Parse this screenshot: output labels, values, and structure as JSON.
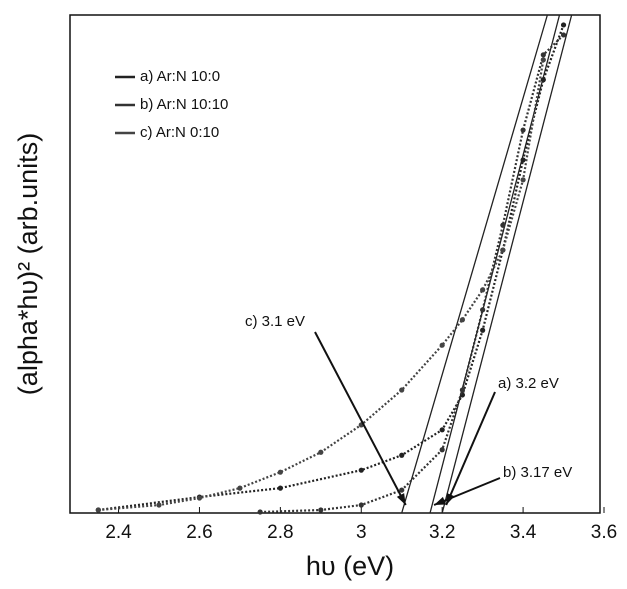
{
  "chart_data": {
    "type": "line",
    "x_label": "hυ (eV)",
    "y_label": "(alpha*hυ)² (arb.units)",
    "xlim": [
      2.28,
      3.6
    ],
    "ylim": [
      0,
      100
    ],
    "xticks": [
      2.4,
      2.6,
      2.8,
      3,
      3.2,
      3.4,
      3.6
    ],
    "series": [
      {
        "name": "a) Ar:N 10:0",
        "color": "#222222",
        "x": [
          2.35,
          2.6,
          2.8,
          3.0,
          3.1,
          3.2,
          3.25,
          3.3,
          3.35,
          3.4,
          3.45,
          3.5
        ],
        "values": [
          0.6,
          3.2,
          5.0,
          8.6,
          11.6,
          16.7,
          23.7,
          36.7,
          52.8,
          70.9,
          87.0,
          98.0
        ]
      },
      {
        "name": "b) Ar:N 10:10",
        "color": "#333333",
        "x": [
          2.75,
          2.9,
          3.0,
          3.1,
          3.2,
          3.25,
          3.3,
          3.35,
          3.4,
          3.45,
          3.5
        ],
        "values": [
          0.2,
          0.6,
          1.6,
          4.6,
          12.7,
          24.7,
          40.8,
          57.8,
          76.9,
          92.0,
          96.0
        ]
      },
      {
        "name": "c) Ar:N 0:10",
        "color": "#444444",
        "x": [
          2.35,
          2.5,
          2.6,
          2.7,
          2.8,
          2.9,
          3.0,
          3.1,
          3.2,
          3.25,
          3.3,
          3.35,
          3.4,
          3.45
        ],
        "values": [
          0.6,
          1.6,
          3.0,
          5.0,
          8.2,
          12.2,
          17.7,
          24.7,
          33.7,
          38.8,
          44.8,
          52.8,
          66.9,
          91.0
        ]
      }
    ],
    "tangents": [
      {
        "x": [
          3.2,
          3.52
        ],
        "values": [
          0,
          100
        ]
      },
      {
        "x": [
          3.17,
          3.49
        ],
        "values": [
          0,
          100
        ]
      },
      {
        "x": [
          3.1,
          3.46
        ],
        "values": [
          0,
          100
        ]
      }
    ],
    "annotations": [
      "a) 3.2 eV",
      "b) 3.17 eV",
      "c) 3.1 eV"
    ]
  }
}
